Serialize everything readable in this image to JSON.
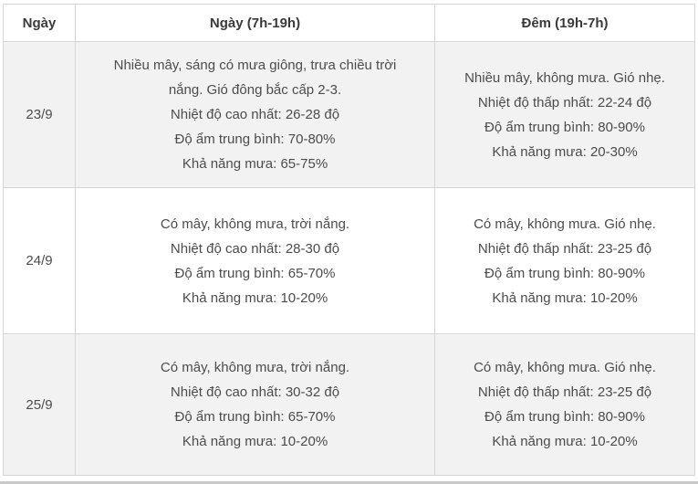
{
  "colors": {
    "border": "#d6d6d6",
    "zebra_row_bg": "#f2f2f2",
    "plain_row_bg": "#ffffff",
    "body_text": "#4c4c4c",
    "header_text": "#3a3a3a",
    "bottom_strip": "#c9c9c9"
  },
  "table": {
    "columns": [
      {
        "label": "Ngày"
      },
      {
        "label": "Ngày (7h-19h)"
      },
      {
        "label": "Đêm (19h-7h)"
      }
    ],
    "rows": [
      {
        "date": "23/9",
        "day_lines": [
          "Nhiều mây, sáng có mưa giông, trưa chiều trời",
          "nắng. Gió đông bắc cấp 2-3.",
          "Nhiệt độ cao nhất: 26-28 độ",
          "Độ ẩm trung bình: 70-80%",
          "Khả năng mưa: 65-75%"
        ],
        "night_lines": [
          "Nhiều mây, không mưa. Gió nhẹ.",
          "Nhiệt độ thấp nhất: 22-24 độ",
          "Độ ẩm trung bình: 80-90%",
          "Khả năng mưa: 20-30%"
        ]
      },
      {
        "date": "24/9",
        "day_lines": [
          "Có mây, không mưa, trời nắng.",
          "Nhiệt độ cao nhất: 28-30 độ",
          "Độ ẩm trung bình: 65-70%",
          "Khả năng mưa: 10-20%"
        ],
        "night_lines": [
          "Có mây, không mưa. Gió nhẹ.",
          "Nhiệt độ thấp nhất: 23-25 độ",
          "Độ ẩm trung bình: 80-90%",
          "Khả năng mưa: 10-20%"
        ]
      },
      {
        "date": "25/9",
        "day_lines": [
          "Có mây, không mưa, trời nắng.",
          "Nhiệt độ cao nhất: 30-32 độ",
          "Độ ẩm trung bình: 65-70%",
          "Khả năng mưa: 10-20%"
        ],
        "night_lines": [
          "Có mây, không mưa. Gió nhẹ.",
          "Nhiệt độ thấp nhất: 23-25 độ",
          "Độ ẩm trung bình: 80-90%",
          "Khả năng mưa: 10-20%"
        ]
      }
    ]
  },
  "chart_data": {
    "type": "table",
    "columns": [
      "Ngày",
      "Ngày (7h-19h)",
      "Đêm (19h-7h)"
    ],
    "rows": [
      [
        "23/9",
        "Nhiều mây, sáng có mưa giông, trưa chiều trời nắng. Gió đông bắc cấp 2-3. Nhiệt độ cao nhất: 26-28 độ. Độ ẩm trung bình: 70-80%. Khả năng mưa: 65-75%",
        "Nhiều mây, không mưa. Gió nhẹ. Nhiệt độ thấp nhất: 22-24 độ. Độ ẩm trung bình: 80-90%. Khả năng mưa: 20-30%"
      ],
      [
        "24/9",
        "Có mây, không mưa, trời nắng. Nhiệt độ cao nhất: 28-30 độ. Độ ẩm trung bình: 65-70%. Khả năng mưa: 10-20%",
        "Có mây, không mưa. Gió nhẹ. Nhiệt độ thấp nhất: 23-25 độ. Độ ẩm trung bình: 80-90%. Khả năng mưa: 10-20%"
      ],
      [
        "25/9",
        "Có mây, không mưa, trời nắng. Nhiệt độ cao nhất: 30-32 độ. Độ ẩm trung bình: 65-70%. Khả năng mưa: 10-20%",
        "Có mây, không mưa. Gió nhẹ. Nhiệt độ thấp nhất: 23-25 độ. Độ ẩm trung bình: 80-90%. Khả năng mưa: 10-20%"
      ]
    ]
  }
}
